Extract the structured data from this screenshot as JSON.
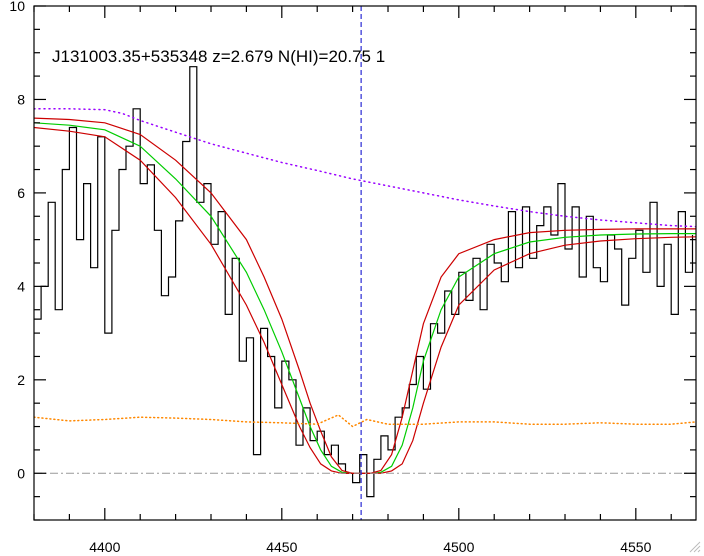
{
  "chart_data": {
    "type": "line",
    "title": "J131003.35+535348 z=2.679 N(HI)=20.75 1",
    "xlabel": "",
    "ylabel": "",
    "xlim": [
      4380,
      4567
    ],
    "ylim": [
      -1,
      10
    ],
    "x_ticks": [
      4400,
      4450,
      4500,
      4550
    ],
    "x_tick_labels": [
      "4400",
      "4450",
      "4500",
      "4550"
    ],
    "y_ticks": [
      0,
      2,
      4,
      6,
      8,
      10
    ],
    "y_tick_labels": [
      "0",
      "2",
      "4",
      "6",
      "8",
      "10"
    ],
    "grid": false,
    "legend": "none",
    "absorption_center_x": 4472.4,
    "colors": {
      "spectrum": "#000000",
      "model": "#00cc00",
      "model_bounds": "#cc0000",
      "continuum": "#9900ff",
      "error": "#ff8800",
      "zero_line": "#999999",
      "center_line": "#0000cc"
    },
    "series": [
      {
        "role": "spectrum",
        "style": "steps",
        "x": [
          4380,
          4382,
          4384,
          4386,
          4388,
          4390,
          4392,
          4394,
          4396,
          4398,
          4400,
          4402,
          4404,
          4406,
          4408,
          4410,
          4412,
          4414,
          4416,
          4418,
          4420,
          4422,
          4424,
          4426,
          4428,
          4430,
          4432,
          4434,
          4436,
          4438,
          4440,
          4442,
          4444,
          4446,
          4448,
          4450,
          4452,
          4454,
          4456,
          4458,
          4460,
          4462,
          4464,
          4466,
          4468,
          4470,
          4472,
          4474,
          4476,
          4478,
          4480,
          4482,
          4484,
          4486,
          4488,
          4490,
          4492,
          4494,
          4496,
          4498,
          4500,
          4502,
          4504,
          4506,
          4508,
          4510,
          4512,
          4514,
          4516,
          4518,
          4520,
          4522,
          4524,
          4526,
          4528,
          4530,
          4532,
          4534,
          4536,
          4538,
          4540,
          4542,
          4544,
          4546,
          4548,
          4550,
          4552,
          4554,
          4556,
          4558,
          4560,
          4562,
          4564,
          4566
        ],
        "y": [
          3.3,
          4.0,
          5.8,
          3.5,
          6.5,
          7.4,
          5.0,
          6.2,
          4.4,
          7.2,
          3.0,
          5.2,
          6.5,
          7.0,
          7.8,
          6.2,
          6.6,
          5.2,
          3.8,
          4.2,
          5.4,
          7.1,
          8.7,
          5.8,
          6.2,
          4.9,
          5.6,
          3.4,
          4.6,
          2.4,
          2.9,
          0.4,
          3.1,
          2.5,
          1.4,
          2.4,
          2.0,
          0.6,
          1.4,
          0.7,
          0.9,
          0.4,
          0.6,
          0.2,
          0.0,
          -0.2,
          0.4,
          -0.5,
          0.3,
          0.8,
          0.5,
          1.2,
          1.4,
          1.9,
          2.5,
          1.8,
          3.2,
          3.0,
          3.9,
          3.4,
          4.3,
          3.7,
          4.6,
          3.5,
          4.9,
          4.5,
          4.1,
          5.6,
          4.4,
          5.7,
          4.6,
          5.3,
          5.7,
          5.1,
          6.2,
          4.8,
          5.7,
          4.2,
          5.5,
          4.4,
          4.1,
          5.1,
          4.8,
          3.6,
          4.6,
          5.2,
          4.3,
          5.8,
          4.0,
          4.9,
          3.4,
          5.6,
          4.3,
          5.1
        ]
      },
      {
        "role": "model",
        "x": [
          4380,
          4390,
          4400,
          4410,
          4420,
          4430,
          4440,
          4445,
          4450,
          4455,
          4458,
          4461,
          4464,
          4467,
          4470,
          4475,
          4478,
          4481,
          4484,
          4487,
          4490,
          4495,
          4500,
          4510,
          4520,
          4530,
          4540,
          4550,
          4560,
          4567
        ],
        "y": [
          7.5,
          7.45,
          7.35,
          7.0,
          6.3,
          5.5,
          4.3,
          3.5,
          2.6,
          1.6,
          1.0,
          0.5,
          0.15,
          0.02,
          0.0,
          0.0,
          0.02,
          0.15,
          0.6,
          1.4,
          2.4,
          3.5,
          4.2,
          4.7,
          4.95,
          5.05,
          5.1,
          5.12,
          5.13,
          5.13
        ]
      },
      {
        "role": "model_upper",
        "x": [
          4380,
          4390,
          4400,
          4410,
          4420,
          4430,
          4440,
          4445,
          4450,
          4455,
          4458,
          4461,
          4464,
          4467,
          4470,
          4475,
          4478,
          4481,
          4484,
          4487,
          4490,
          4495,
          4500,
          4510,
          4520,
          4530,
          4540,
          4550,
          4560,
          4567
        ],
        "y": [
          7.6,
          7.57,
          7.5,
          7.25,
          6.7,
          6.0,
          5.0,
          4.2,
          3.3,
          2.2,
          1.5,
          0.9,
          0.35,
          0.06,
          0.0,
          0.0,
          0.06,
          0.4,
          1.2,
          2.2,
          3.2,
          4.2,
          4.7,
          5.0,
          5.15,
          5.2,
          5.22,
          5.23,
          5.23,
          5.23
        ]
      },
      {
        "role": "model_lower",
        "x": [
          4380,
          4390,
          4400,
          4410,
          4420,
          4430,
          4440,
          4445,
          4450,
          4455,
          4458,
          4461,
          4464,
          4467,
          4470,
          4475,
          4478,
          4481,
          4484,
          4487,
          4490,
          4495,
          4500,
          4510,
          4520,
          4530,
          4540,
          4550,
          4560,
          4567
        ],
        "y": [
          7.4,
          7.32,
          7.2,
          6.7,
          5.9,
          4.9,
          3.6,
          2.8,
          1.9,
          1.0,
          0.55,
          0.2,
          0.05,
          0.0,
          0.0,
          0.0,
          0.0,
          0.05,
          0.2,
          0.7,
          1.5,
          2.7,
          3.6,
          4.35,
          4.7,
          4.88,
          4.97,
          5.02,
          5.05,
          5.06
        ]
      },
      {
        "role": "continuum",
        "style": "dotted",
        "x": [
          4380,
          4390,
          4400,
          4405,
          4410,
          4420,
          4430,
          4440,
          4450,
          4460,
          4470,
          4480,
          4490,
          4500,
          4510,
          4520,
          4530,
          4540,
          4550,
          4560,
          4567
        ],
        "y": [
          7.8,
          7.8,
          7.78,
          7.7,
          7.55,
          7.3,
          7.05,
          6.85,
          6.65,
          6.48,
          6.3,
          6.15,
          6.0,
          5.85,
          5.72,
          5.6,
          5.5,
          5.42,
          5.36,
          5.3,
          5.28
        ]
      },
      {
        "role": "error",
        "style": "dotted",
        "x": [
          4380,
          4390,
          4400,
          4410,
          4420,
          4430,
          4440,
          4450,
          4460,
          4466,
          4470,
          4474,
          4480,
          4490,
          4500,
          4510,
          4520,
          4530,
          4540,
          4550,
          4560,
          4567
        ],
        "y": [
          1.2,
          1.12,
          1.15,
          1.2,
          1.18,
          1.15,
          1.1,
          1.08,
          1.05,
          1.25,
          1.0,
          1.15,
          1.05,
          1.05,
          1.1,
          1.1,
          1.05,
          1.05,
          1.08,
          1.05,
          1.05,
          1.1
        ]
      }
    ]
  }
}
